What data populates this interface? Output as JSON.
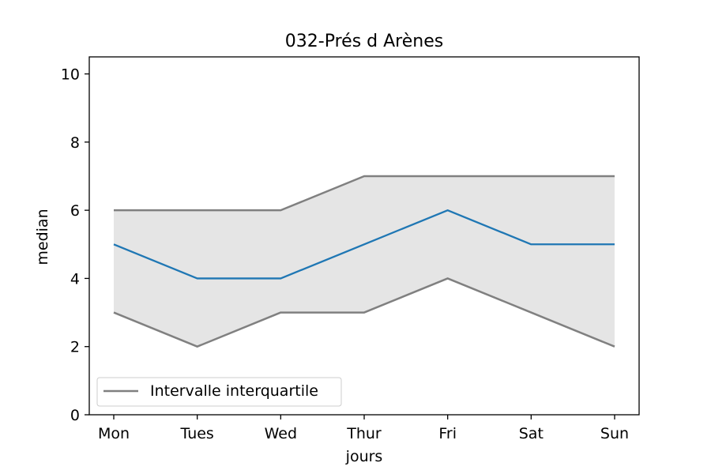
{
  "chart_data": {
    "type": "line",
    "title": "032-Prés d Arènes",
    "xlabel": "jours",
    "ylabel": "median",
    "categories": [
      "Mon",
      "Tues",
      "Wed",
      "Thur",
      "Fri",
      "Sat",
      "Sun"
    ],
    "ylim": [
      0,
      10.5
    ],
    "yticks": [
      0,
      2,
      4,
      6,
      8,
      10
    ],
    "grid": false,
    "legend_position": "lower-left",
    "series": [
      {
        "key": "median",
        "values": [
          5,
          4,
          4,
          5,
          6,
          5,
          5
        ],
        "color": "#1f77b4"
      }
    ],
    "band": {
      "name": "Intervalle interquartile",
      "lower": [
        3,
        2,
        3,
        3,
        4,
        3,
        2
      ],
      "upper": [
        6,
        6,
        6,
        7,
        7,
        7,
        7
      ],
      "line_color": "#808080",
      "fill_color": "#e5e5e5"
    }
  }
}
